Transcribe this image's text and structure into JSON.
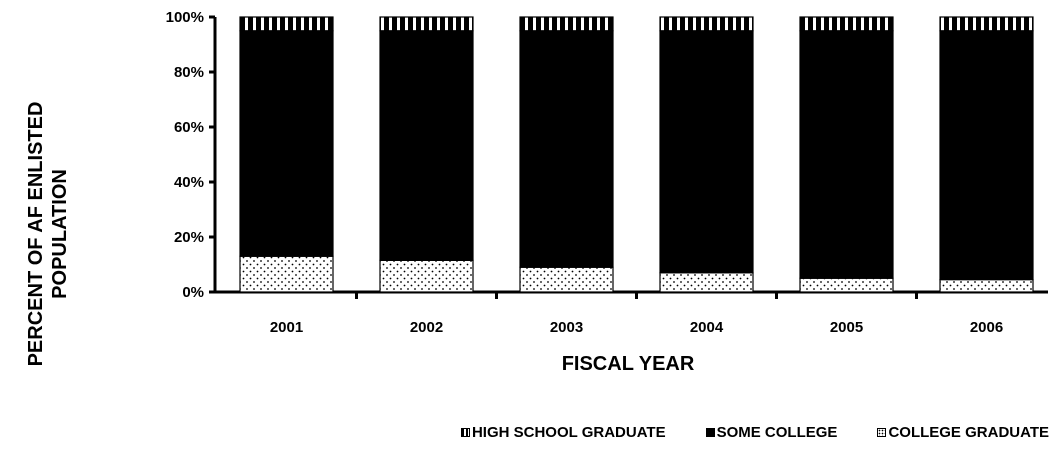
{
  "chart_data": {
    "type": "bar",
    "stacked": true,
    "percent": true,
    "categories": [
      "2001",
      "2002",
      "2003",
      "2004",
      "2005",
      "2006"
    ],
    "series": [
      {
        "name": "COLLEGE GRADUATE",
        "values": [
          13,
          11.5,
          9,
          7,
          5,
          4.5
        ],
        "color": "#000000",
        "pattern": "dots"
      },
      {
        "name": "SOME COLLEGE",
        "values": [
          82,
          83.5,
          86,
          88,
          90,
          90.5
        ],
        "color": "#000000",
        "pattern": "solid"
      },
      {
        "name": "HIGH SCHOOL GRADUATE",
        "values": [
          5,
          5,
          5,
          5,
          5,
          5
        ],
        "color": "#000000",
        "pattern": "vertical-stripes"
      }
    ],
    "xlabel": "FISCAL YEAR",
    "ylabel": "PERCENT OF AF ENLISTED POPULATION",
    "ylim": [
      0,
      100
    ],
    "yticks": [
      "0%",
      "20%",
      "40%",
      "60%",
      "80%",
      "100%"
    ],
    "grid": false,
    "legend_position": "bottom-right"
  },
  "legend": {
    "items": [
      {
        "label": "HIGH SCHOOL GRADUATE"
      },
      {
        "label": "SOME COLLEGE"
      },
      {
        "label": "COLLEGE GRADUATE"
      }
    ]
  }
}
